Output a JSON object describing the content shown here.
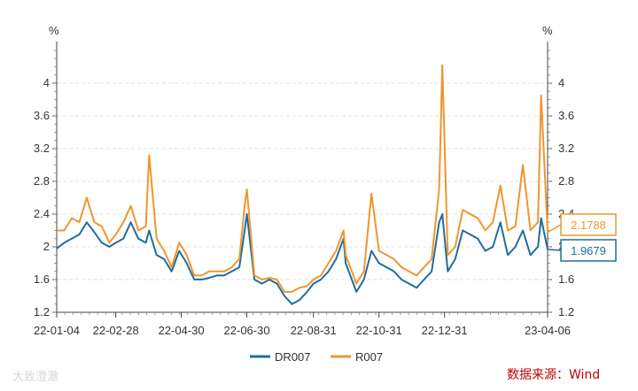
{
  "chart_data": {
    "type": "line",
    "y_unit_left": "%",
    "y_unit_right": "%",
    "ylim": [
      1.2,
      4.4
    ],
    "y_ticks": [
      "1.2",
      "1.6",
      "2",
      "2.4",
      "2.8",
      "3.2",
      "3.6",
      "4"
    ],
    "x_ticks": [
      "22-01-04",
      "22-02-28",
      "22-04-30",
      "22-06-30",
      "22-08-31",
      "22-10-31",
      "22-12-31",
      "23-04-06"
    ],
    "x": [
      "2022-01-04",
      "2022-01-11",
      "2022-01-18",
      "2022-01-25",
      "2022-02-01",
      "2022-02-08",
      "2022-02-15",
      "2022-02-22",
      "2022-02-28",
      "2022-03-07",
      "2022-03-14",
      "2022-03-21",
      "2022-03-28",
      "2022-03-31",
      "2022-04-07",
      "2022-04-14",
      "2022-04-21",
      "2022-04-28",
      "2022-05-05",
      "2022-05-12",
      "2022-05-19",
      "2022-05-26",
      "2022-06-02",
      "2022-06-09",
      "2022-06-16",
      "2022-06-23",
      "2022-06-28",
      "2022-06-30",
      "2022-07-07",
      "2022-07-14",
      "2022-07-21",
      "2022-07-28",
      "2022-08-04",
      "2022-08-11",
      "2022-08-18",
      "2022-08-25",
      "2022-08-31",
      "2022-09-07",
      "2022-09-14",
      "2022-09-21",
      "2022-09-28",
      "2022-09-30",
      "2022-10-10",
      "2022-10-17",
      "2022-10-24",
      "2022-10-31",
      "2022-11-07",
      "2022-11-14",
      "2022-11-21",
      "2022-11-28",
      "2022-12-05",
      "2022-12-12",
      "2022-12-19",
      "2022-12-26",
      "2022-12-29",
      "2023-01-03",
      "2023-01-10",
      "2023-01-17",
      "2023-01-31",
      "2023-02-07",
      "2023-02-14",
      "2023-02-21",
      "2023-02-28",
      "2023-03-07",
      "2023-03-14",
      "2023-03-21",
      "2023-03-28",
      "2023-03-31",
      "2023-04-06"
    ],
    "series": [
      {
        "name": "DR007",
        "color": "#1f6e9c",
        "values": [
          1.98,
          2.05,
          2.1,
          2.15,
          2.3,
          2.18,
          2.05,
          2.0,
          2.05,
          2.1,
          2.3,
          2.1,
          2.05,
          2.2,
          1.9,
          1.85,
          1.7,
          1.95,
          1.8,
          1.6,
          1.6,
          1.62,
          1.65,
          1.65,
          1.7,
          1.75,
          2.2,
          2.4,
          1.6,
          1.55,
          1.6,
          1.55,
          1.4,
          1.3,
          1.35,
          1.45,
          1.55,
          1.6,
          1.7,
          1.85,
          2.1,
          1.8,
          1.45,
          1.6,
          1.95,
          1.8,
          1.75,
          1.7,
          1.6,
          1.55,
          1.5,
          1.6,
          1.7,
          2.3,
          2.4,
          1.7,
          1.85,
          2.2,
          2.1,
          1.95,
          2.0,
          2.3,
          1.9,
          2.0,
          2.2,
          1.9,
          2.0,
          2.35,
          1.9679
        ]
      },
      {
        "name": "R007",
        "color": "#f0962e",
        "values": [
          2.2,
          2.2,
          2.35,
          2.3,
          2.6,
          2.3,
          2.25,
          2.05,
          2.15,
          2.3,
          2.5,
          2.2,
          2.25,
          3.12,
          2.1,
          1.95,
          1.75,
          2.05,
          1.9,
          1.65,
          1.65,
          1.7,
          1.7,
          1.7,
          1.75,
          1.85,
          2.5,
          2.7,
          1.65,
          1.6,
          1.62,
          1.6,
          1.45,
          1.45,
          1.5,
          1.52,
          1.6,
          1.65,
          1.8,
          1.95,
          2.2,
          1.9,
          1.55,
          1.7,
          2.65,
          1.95,
          1.9,
          1.85,
          1.75,
          1.7,
          1.65,
          1.75,
          1.85,
          2.7,
          4.22,
          1.9,
          2.0,
          2.45,
          2.35,
          2.2,
          2.3,
          2.75,
          2.2,
          2.25,
          3.0,
          2.2,
          2.3,
          3.85,
          2.1788
        ]
      }
    ]
  },
  "end_labels": {
    "r007": "2.1788",
    "dr007": "1.9679"
  },
  "source": "数据来源：Wind",
  "watermark": "大致澄澈"
}
